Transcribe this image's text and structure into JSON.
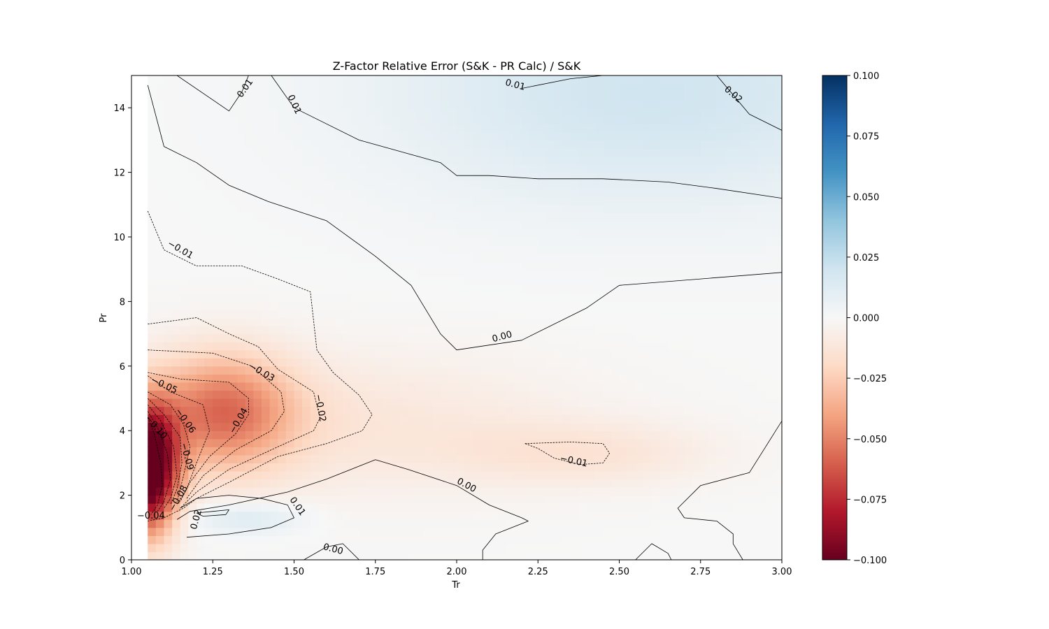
{
  "chart_data": {
    "type": "heatmap",
    "subtype": "filled-contour-with-contour-lines",
    "title": "Z-Factor Relative Error (S&K - PR Calc) / S&K",
    "xlabel": "Tr",
    "ylabel": "Pr",
    "xlim": [
      1.0,
      3.0
    ],
    "ylim": [
      0,
      15
    ],
    "data_xrange": [
      1.05,
      3.0
    ],
    "x_ticks": [
      1.0,
      1.25,
      1.5,
      1.75,
      2.0,
      2.25,
      2.5,
      2.75,
      3.0
    ],
    "x_tick_labels": [
      "1.00",
      "1.25",
      "1.50",
      "1.75",
      "2.00",
      "2.25",
      "2.50",
      "2.75",
      "3.00"
    ],
    "y_ticks": [
      0,
      2,
      4,
      6,
      8,
      10,
      12,
      14
    ],
    "y_tick_labels": [
      "0",
      "2",
      "4",
      "6",
      "8",
      "10",
      "12",
      "14"
    ],
    "grid": false,
    "colormap": "RdBu",
    "colormap_colors": [
      "#67001f",
      "#b2182b",
      "#d6604d",
      "#f4a582",
      "#fddbc7",
      "#f7f7f7",
      "#d1e5f0",
      "#92c5de",
      "#4393c3",
      "#2166ac",
      "#053061"
    ],
    "colorbar": {
      "range": [
        -0.1,
        0.1
      ],
      "ticks": [
        0.1,
        0.075,
        0.05,
        0.025,
        0.0,
        -0.025,
        -0.05,
        -0.075,
        -0.1
      ],
      "tick_labels": [
        "0.100",
        "0.075",
        "0.050",
        "0.025",
        "0.000",
        "−0.025",
        "−0.050",
        "−0.075",
        "−0.100"
      ],
      "placement": "right"
    },
    "features": [
      {
        "kind": "negative-core",
        "tr": 1.05,
        "pr": 2.8,
        "value": -0.12,
        "spread_tr": 0.09,
        "spread_pr": 1.9
      },
      {
        "kind": "negative-lobe",
        "tr": 1.28,
        "pr": 4.6,
        "value": -0.05,
        "spread_tr": 0.22,
        "spread_pr": 1.8
      },
      {
        "kind": "negative-band",
        "tr": 1.65,
        "pr": 4.2,
        "value": -0.012,
        "spread_tr": 0.7,
        "spread_pr": 2.2
      },
      {
        "kind": "negative-pocket",
        "tr": 2.4,
        "pr": 3.3,
        "value": -0.012,
        "spread_tr": 0.4,
        "spread_pr": 1.0
      },
      {
        "kind": "positive-pocket",
        "tr": 1.35,
        "pr": 1.3,
        "value": 0.015,
        "spread_tr": 0.18,
        "spread_pr": 0.5
      },
      {
        "kind": "positive-region",
        "tr": 2.6,
        "pr": 14.5,
        "value": 0.02,
        "spread_tr": 0.8,
        "spread_pr": 3.5
      }
    ],
    "contour_labels": [
      {
        "text": "0.01",
        "tr": 1.35,
        "pr": 14.6,
        "angle": -55
      },
      {
        "text": "0.01",
        "tr": 1.5,
        "pr": 14.1,
        "angle": 65
      },
      {
        "text": "0.01",
        "tr": 2.18,
        "pr": 14.7,
        "angle": 15
      },
      {
        "text": "0.02",
        "tr": 2.85,
        "pr": 14.4,
        "angle": 40
      },
      {
        "text": "−0.01",
        "tr": 1.15,
        "pr": 9.6,
        "angle": 30
      },
      {
        "text": "0.00",
        "tr": 2.14,
        "pr": 6.9,
        "angle": -15
      },
      {
        "text": "−0.03",
        "tr": 1.4,
        "pr": 5.8,
        "angle": 30
      },
      {
        "text": "−0.05",
        "tr": 1.1,
        "pr": 5.4,
        "angle": 25
      },
      {
        "text": "−0.02",
        "tr": 1.58,
        "pr": 4.7,
        "angle": 80
      },
      {
        "text": "−0.06",
        "tr": 1.165,
        "pr": 4.3,
        "angle": 55
      },
      {
        "text": "−0.04",
        "tr": 1.33,
        "pr": 4.3,
        "angle": -60
      },
      {
        "text": "−0.10",
        "tr": 1.075,
        "pr": 4.1,
        "angle": 50
      },
      {
        "text": "−0.09",
        "tr": 1.17,
        "pr": 3.2,
        "angle": 75
      },
      {
        "text": "−0.01",
        "tr": 2.36,
        "pr": 3.05,
        "angle": 12
      },
      {
        "text": "0.00",
        "tr": 2.03,
        "pr": 2.3,
        "angle": 28
      },
      {
        "text": "−0.08",
        "tr": 1.145,
        "pr": 1.9,
        "angle": -60
      },
      {
        "text": "0.01",
        "tr": 1.51,
        "pr": 1.65,
        "angle": 55
      },
      {
        "text": "−0.04",
        "tr": 1.06,
        "pr": 1.35,
        "angle": 0
      },
      {
        "text": "0.02",
        "tr": 1.2,
        "pr": 1.25,
        "angle": -75
      },
      {
        "text": "0.00",
        "tr": 1.62,
        "pr": 0.32,
        "angle": 15
      }
    ],
    "contour_lines": [
      {
        "level": 0.01,
        "style": "solid",
        "points": [
          [
            1.05,
            14.7
          ],
          [
            1.1,
            12.8
          ],
          [
            1.2,
            12.3
          ],
          [
            1.3,
            11.6
          ],
          [
            1.42,
            11.1
          ],
          [
            1.6,
            10.5
          ],
          [
            1.75,
            9.4
          ],
          [
            1.86,
            8.5
          ],
          [
            1.95,
            7.0
          ],
          [
            2.0,
            6.5
          ],
          [
            2.2,
            6.8
          ],
          [
            2.4,
            7.8
          ],
          [
            2.5,
            8.5
          ],
          [
            2.75,
            8.7
          ],
          [
            3.0,
            8.9
          ]
        ]
      },
      {
        "level": 0.01,
        "style": "solid",
        "points": [
          [
            1.14,
            15.0
          ],
          [
            1.3,
            13.9
          ],
          [
            1.34,
            14.5
          ],
          [
            1.36,
            15.0
          ]
        ]
      },
      {
        "level": 0.01,
        "style": "solid",
        "points": [
          [
            1.43,
            15.0
          ],
          [
            1.5,
            14.0
          ],
          [
            1.7,
            13.0
          ],
          [
            1.95,
            12.3
          ],
          [
            2.0,
            11.9
          ],
          [
            2.1,
            11.9
          ],
          [
            2.25,
            11.8
          ],
          [
            2.45,
            11.8
          ],
          [
            2.65,
            11.7
          ],
          [
            2.8,
            11.5
          ],
          [
            3.0,
            11.2
          ]
        ]
      },
      {
        "level": 0.01,
        "style": "solid",
        "points": [
          [
            2.2,
            14.6
          ],
          [
            2.35,
            14.9
          ],
          [
            2.45,
            15.0
          ]
        ]
      },
      {
        "level": 0.02,
        "style": "solid",
        "points": [
          [
            2.8,
            15.0
          ],
          [
            2.9,
            13.8
          ],
          [
            3.0,
            13.3
          ]
        ]
      },
      {
        "level": -0.01,
        "style": "dashed",
        "points": [
          [
            1.05,
            10.8
          ],
          [
            1.1,
            9.6
          ],
          [
            1.2,
            9.1
          ],
          [
            1.34,
            9.1
          ],
          [
            1.45,
            8.7
          ],
          [
            1.55,
            8.3
          ],
          [
            1.57,
            6.5
          ],
          [
            1.62,
            5.8
          ],
          [
            1.7,
            5.1
          ],
          [
            1.74,
            4.5
          ],
          [
            1.71,
            4.0
          ],
          [
            1.6,
            3.6
          ],
          [
            1.45,
            3.2
          ],
          [
            1.3,
            2.4
          ],
          [
            1.2,
            1.9
          ],
          [
            1.16,
            1.6
          ],
          [
            1.1,
            1.3
          ],
          [
            1.05,
            1.2
          ]
        ]
      },
      {
        "level": -0.02,
        "style": "dashed",
        "points": [
          [
            1.05,
            7.3
          ],
          [
            1.2,
            7.5
          ],
          [
            1.3,
            7.0
          ],
          [
            1.39,
            6.6
          ],
          [
            1.45,
            5.9
          ],
          [
            1.56,
            5.2
          ],
          [
            1.58,
            4.4
          ],
          [
            1.56,
            4.0
          ],
          [
            1.45,
            3.5
          ],
          [
            1.3,
            2.8
          ],
          [
            1.2,
            2.1
          ],
          [
            1.15,
            1.6
          ]
        ]
      },
      {
        "level": -0.03,
        "style": "dashed",
        "points": [
          [
            1.05,
            6.5
          ],
          [
            1.25,
            6.4
          ],
          [
            1.37,
            6.0
          ],
          [
            1.46,
            5.2
          ],
          [
            1.47,
            4.6
          ],
          [
            1.43,
            4.0
          ],
          [
            1.32,
            3.4
          ],
          [
            1.22,
            2.6
          ],
          [
            1.17,
            1.9
          ]
        ]
      },
      {
        "level": -0.04,
        "style": "dashed",
        "points": [
          [
            1.05,
            5.8
          ],
          [
            1.15,
            5.6
          ],
          [
            1.3,
            5.5
          ],
          [
            1.36,
            5.0
          ],
          [
            1.36,
            4.5
          ],
          [
            1.32,
            3.9
          ],
          [
            1.24,
            3.2
          ],
          [
            1.18,
            2.4
          ],
          [
            1.15,
            1.8
          ]
        ]
      },
      {
        "level": -0.05,
        "style": "dashed",
        "points": [
          [
            1.05,
            5.7
          ],
          [
            1.12,
            5.2
          ],
          [
            1.22,
            4.8
          ],
          [
            1.24,
            4.0
          ],
          [
            1.2,
            3.0
          ],
          [
            1.17,
            2.2
          ],
          [
            1.14,
            1.7
          ]
        ]
      },
      {
        "level": -0.06,
        "style": "dashed",
        "points": [
          [
            1.05,
            5.2
          ],
          [
            1.12,
            4.8
          ],
          [
            1.16,
            4.2
          ],
          [
            1.18,
            3.5
          ],
          [
            1.16,
            2.6
          ],
          [
            1.14,
            1.8
          ]
        ]
      },
      {
        "level": -0.07,
        "style": "dashed",
        "points": [
          [
            1.05,
            5.0
          ],
          [
            1.1,
            4.5
          ],
          [
            1.15,
            3.8
          ],
          [
            1.155,
            3.0
          ],
          [
            1.14,
            2.2
          ],
          [
            1.12,
            1.7
          ]
        ]
      },
      {
        "level": -0.08,
        "style": "dashed",
        "points": [
          [
            1.05,
            4.8
          ],
          [
            1.09,
            4.3
          ],
          [
            1.13,
            3.5
          ],
          [
            1.14,
            2.6
          ],
          [
            1.12,
            1.9
          ],
          [
            1.1,
            1.6
          ]
        ]
      },
      {
        "level": -0.09,
        "style": "dashed",
        "points": [
          [
            1.05,
            4.6
          ],
          [
            1.08,
            4.1
          ],
          [
            1.11,
            3.3
          ],
          [
            1.12,
            2.5
          ],
          [
            1.1,
            1.8
          ],
          [
            1.08,
            1.5
          ]
        ]
      },
      {
        "level": -0.1,
        "style": "dashed",
        "points": [
          [
            1.05,
            4.4
          ],
          [
            1.07,
            3.9
          ],
          [
            1.09,
            3.0
          ],
          [
            1.095,
            2.3
          ],
          [
            1.08,
            1.7
          ],
          [
            1.06,
            1.4
          ]
        ]
      },
      {
        "level": 0.0,
        "style": "solid",
        "points": [
          [
            1.14,
            1.25
          ],
          [
            1.18,
            1.5
          ],
          [
            1.3,
            1.7
          ],
          [
            1.48,
            2.1
          ],
          [
            1.6,
            2.5
          ],
          [
            1.75,
            3.1
          ],
          [
            1.85,
            2.8
          ],
          [
            2.0,
            2.3
          ],
          [
            2.1,
            1.7
          ],
          [
            2.2,
            1.3
          ],
          [
            2.22,
            1.2
          ],
          [
            2.12,
            0.8
          ],
          [
            2.08,
            0.3
          ],
          [
            2.08,
            0
          ]
        ]
      },
      {
        "level": 0.01,
        "style": "solid",
        "points": [
          [
            1.17,
            0.7
          ],
          [
            1.3,
            0.8
          ],
          [
            1.43,
            1.0
          ],
          [
            1.5,
            1.3
          ],
          [
            1.48,
            1.7
          ],
          [
            1.4,
            1.9
          ],
          [
            1.3,
            2.0
          ],
          [
            1.2,
            1.9
          ],
          [
            1.15,
            1.6
          ]
        ]
      },
      {
        "level": 0.02,
        "style": "solid",
        "points": [
          [
            1.2,
            1.45
          ],
          [
            1.25,
            1.5
          ],
          [
            1.3,
            1.55
          ],
          [
            1.29,
            1.4
          ],
          [
            1.22,
            1.35
          ],
          [
            1.2,
            1.45
          ]
        ]
      },
      {
        "level": 0.0,
        "style": "solid",
        "points": [
          [
            1.53,
            0
          ],
          [
            1.6,
            0.4
          ],
          [
            1.65,
            0.5
          ],
          [
            1.7,
            0
          ]
        ]
      },
      {
        "level": -0.01,
        "style": "dashed",
        "points": [
          [
            2.21,
            3.6
          ],
          [
            2.35,
            3.65
          ],
          [
            2.45,
            3.6
          ],
          [
            2.47,
            3.3
          ],
          [
            2.45,
            3.0
          ],
          [
            2.38,
            2.95
          ],
          [
            2.3,
            3.15
          ],
          [
            2.25,
            3.45
          ],
          [
            2.21,
            3.6
          ]
        ]
      },
      {
        "level": 0.0,
        "style": "solid",
        "points": [
          [
            2.55,
            0
          ],
          [
            2.6,
            0.5
          ],
          [
            2.65,
            0.2
          ],
          [
            2.66,
            0
          ]
        ]
      },
      {
        "level": 0.0,
        "style": "solid",
        "points": [
          [
            2.88,
            0
          ],
          [
            2.85,
            0.5
          ],
          [
            2.85,
            0.8
          ],
          [
            2.8,
            1.2
          ],
          [
            2.7,
            1.3
          ],
          [
            2.68,
            1.6
          ],
          [
            2.75,
            2.3
          ],
          [
            2.9,
            2.7
          ],
          [
            2.95,
            3.5
          ],
          [
            3.0,
            4.3
          ]
        ]
      }
    ]
  }
}
